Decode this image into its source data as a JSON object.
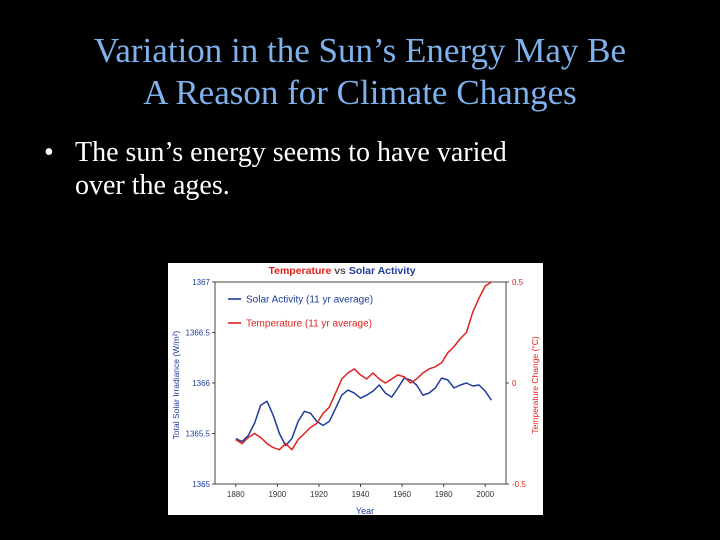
{
  "slide": {
    "title_lines": [
      "Variation in the Sun’s Energy May Be",
      "A Reason for Climate Changes"
    ],
    "bullet_symbol": "•",
    "bullet_lines": [
      "The sun’s energy seems to have varied",
      "over the ages."
    ]
  },
  "chart_data": {
    "type": "line",
    "title_parts": [
      {
        "text": "Temperature",
        "color": "#e0221e"
      },
      {
        "text": " vs ",
        "color": "#555555"
      },
      {
        "text": "Solar Activity",
        "color": "#1f3c9c"
      }
    ],
    "xlabel": "Year",
    "ylabel_left": "Total Solar Irradiance (W/m²)",
    "ylabel_right": "Temperature Change (°C)",
    "xlim": [
      1870,
      2010
    ],
    "ylim_left": [
      1365,
      1367
    ],
    "ylim_right": [
      -0.5,
      0.5
    ],
    "x_ticks": [
      1880,
      1900,
      1920,
      1940,
      1960,
      1980,
      2000
    ],
    "y_ticks_left": [
      "1365",
      "1365.5",
      "1366",
      "1366.5",
      "1367"
    ],
    "y_ticks_left_values": [
      1365,
      1365.5,
      1366,
      1366.5,
      1367
    ],
    "y_ticks_right": [
      "-0.5",
      "0",
      "0.5"
    ],
    "y_ticks_right_values": [
      -0.5,
      0,
      0.5
    ],
    "legend_position": "top-left",
    "series": [
      {
        "name": "Solar Activity (11 yr average)",
        "axis": "left",
        "color": "#1f3c9c",
        "x": [
          1880,
          1883,
          1886,
          1889,
          1892,
          1895,
          1898,
          1901,
          1904,
          1907,
          1910,
          1913,
          1916,
          1919,
          1922,
          1925,
          1928,
          1931,
          1934,
          1937,
          1940,
          1943,
          1946,
          1949,
          1952,
          1955,
          1958,
          1961,
          1964,
          1967,
          1970,
          1973,
          1976,
          1979,
          1982,
          1985,
          1988,
          1991,
          1994,
          1997,
          2000,
          2003
        ],
        "y": [
          1365.45,
          1365.42,
          1365.48,
          1365.6,
          1365.78,
          1365.82,
          1365.68,
          1365.5,
          1365.38,
          1365.45,
          1365.62,
          1365.72,
          1365.7,
          1365.62,
          1365.58,
          1365.62,
          1365.75,
          1365.88,
          1365.93,
          1365.9,
          1365.85,
          1365.88,
          1365.92,
          1365.98,
          1365.9,
          1365.86,
          1365.95,
          1366.05,
          1366.03,
          1365.98,
          1365.88,
          1365.9,
          1365.95,
          1366.05,
          1366.03,
          1365.95,
          1365.98,
          1366.0,
          1365.97,
          1365.98,
          1365.92,
          1365.83
        ]
      },
      {
        "name": "Temperature (11 yr average)",
        "axis": "right",
        "color": "#e0221e",
        "x": [
          1880,
          1883,
          1886,
          1889,
          1892,
          1895,
          1898,
          1901,
          1904,
          1907,
          1910,
          1913,
          1916,
          1919,
          1922,
          1925,
          1928,
          1931,
          1934,
          1937,
          1940,
          1943,
          1946,
          1949,
          1952,
          1955,
          1958,
          1961,
          1964,
          1967,
          1970,
          1973,
          1976,
          1979,
          1982,
          1985,
          1988,
          1991,
          1994,
          1997,
          2000,
          2003
        ],
        "y": [
          -0.28,
          -0.3,
          -0.27,
          -0.25,
          -0.27,
          -0.3,
          -0.32,
          -0.33,
          -0.3,
          -0.33,
          -0.28,
          -0.25,
          -0.22,
          -0.2,
          -0.15,
          -0.12,
          -0.05,
          0.02,
          0.05,
          0.07,
          0.04,
          0.02,
          0.05,
          0.02,
          0.0,
          0.02,
          0.04,
          0.03,
          0.0,
          0.02,
          0.05,
          0.07,
          0.08,
          0.1,
          0.15,
          0.18,
          0.22,
          0.25,
          0.35,
          0.42,
          0.48,
          0.5
        ]
      }
    ]
  }
}
